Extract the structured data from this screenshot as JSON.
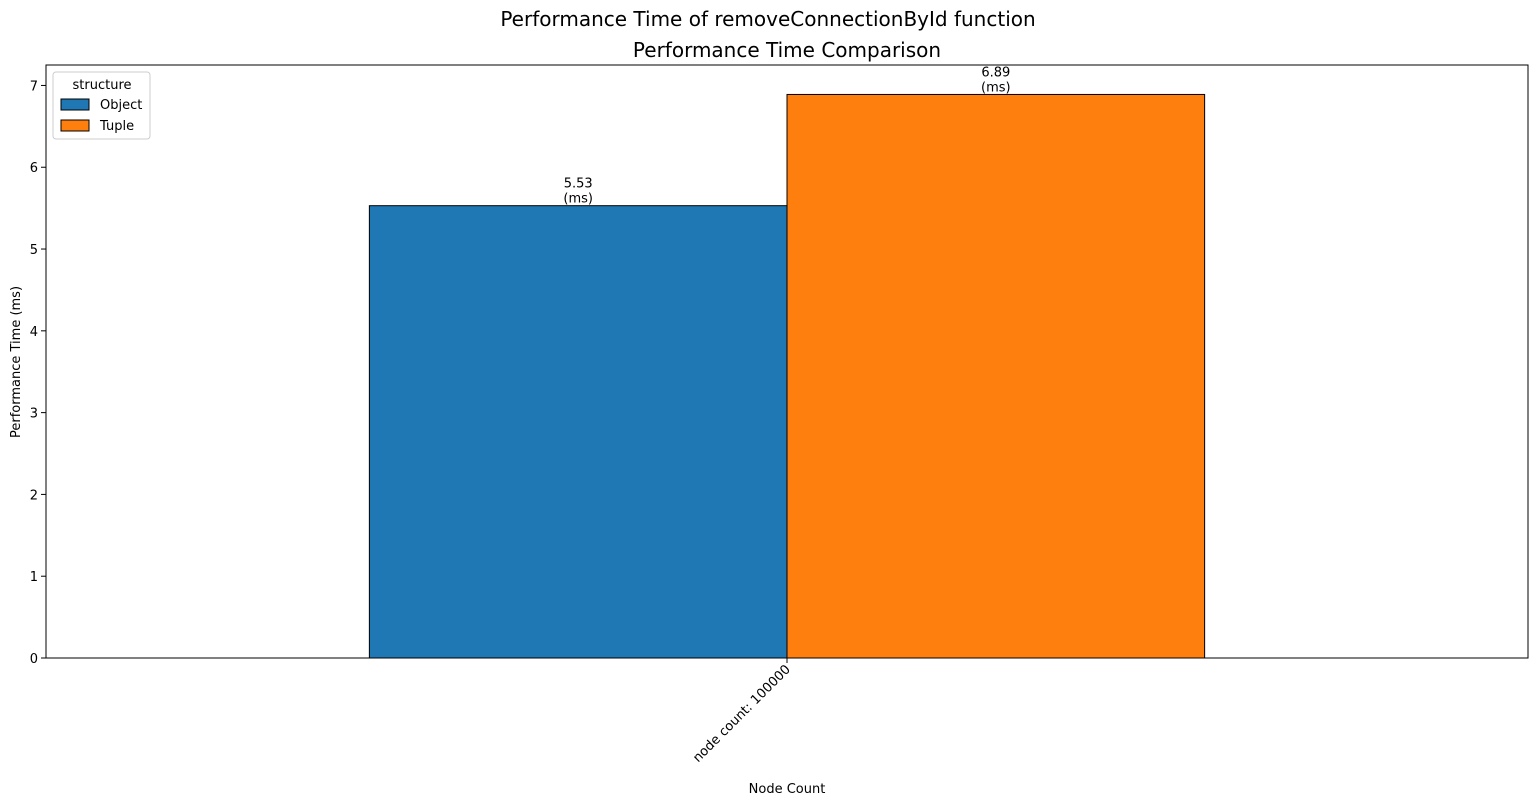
{
  "figure": {
    "suptitle": "Performance Time of removeConnectionById function"
  },
  "chart_data": {
    "type": "bar",
    "title": "Performance Time Comparison",
    "xlabel": "Node Count",
    "ylabel": "Performance Time (ms)",
    "categories": [
      "node count: 100000"
    ],
    "series": [
      {
        "name": "Object",
        "values": [
          5.53
        ],
        "color": "#1f77b4"
      },
      {
        "name": "Tuple",
        "values": [
          6.89
        ],
        "color": "#ff7f0e"
      }
    ],
    "ylim": [
      0,
      7.25
    ],
    "yticks": [
      "0",
      "1",
      "2",
      "3",
      "4",
      "5",
      "6",
      "7"
    ],
    "bar_labels": [
      {
        "value": "5.53",
        "unit": "(ms)"
      },
      {
        "value": "6.89",
        "unit": "(ms)"
      }
    ],
    "legend": {
      "title": "structure",
      "placement": "top-left"
    },
    "grid": false
  }
}
